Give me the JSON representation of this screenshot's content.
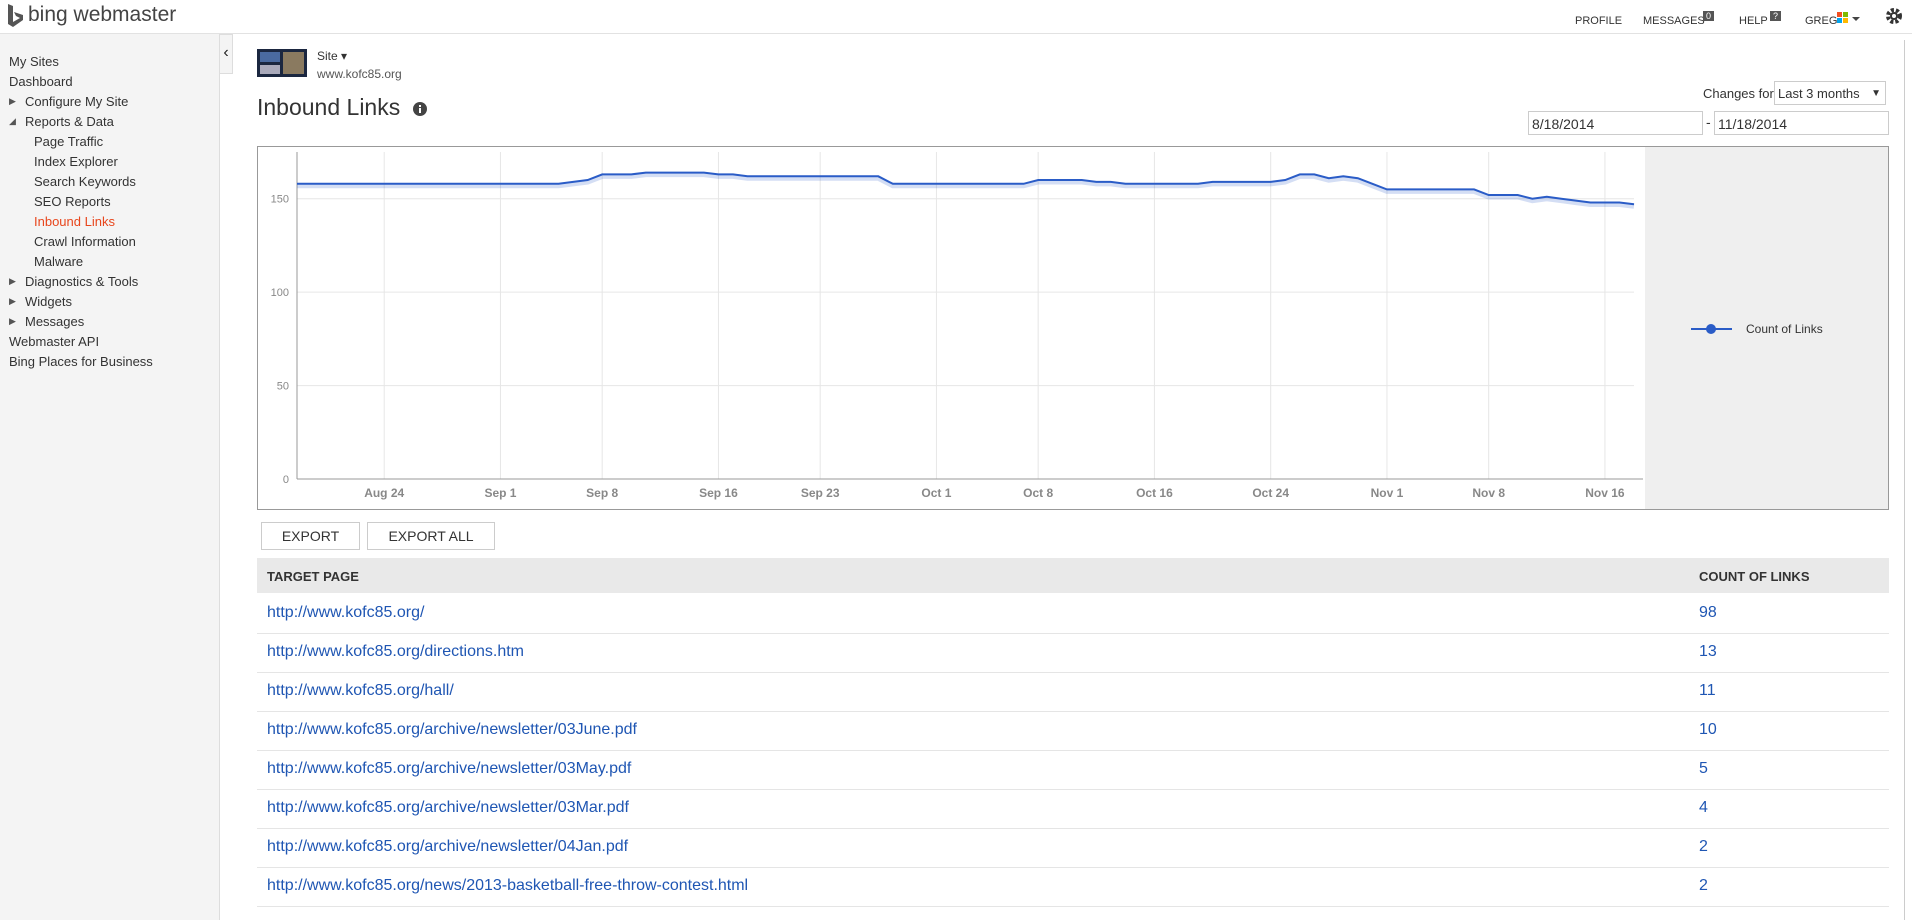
{
  "header": {
    "brand": "bing webmaster",
    "nav": [
      "PROFILE",
      "MESSAGES",
      "HELP",
      "GREG"
    ],
    "messages_badge": "0",
    "help_badge": "?"
  },
  "sidebar": {
    "items": [
      {
        "label": "My Sites"
      },
      {
        "label": "Dashboard"
      },
      {
        "label": "Configure My Site",
        "expandable": true
      },
      {
        "label": "Reports & Data",
        "children": [
          {
            "label": "Page Traffic"
          },
          {
            "label": "Index Explorer"
          },
          {
            "label": "Search Keywords"
          },
          {
            "label": "SEO Reports"
          },
          {
            "label": "Inbound Links",
            "active": true
          },
          {
            "label": "Crawl Information"
          },
          {
            "label": "Malware"
          }
        ]
      },
      {
        "label": "Diagnostics & Tools",
        "expandable": true
      },
      {
        "label": "Widgets",
        "expandable": true
      },
      {
        "label": "Messages",
        "expandable": true
      },
      {
        "label": "Webmaster API"
      },
      {
        "label": "Bing Places for Business"
      }
    ]
  },
  "site": {
    "menu": "Site",
    "url": "www.kofc85.org"
  },
  "page": {
    "title": "Inbound Links",
    "changes_for": "Changes for",
    "range": "Last 3 months",
    "date_from": "8/18/2014",
    "date_sep": "-",
    "date_to": "11/18/2014"
  },
  "chart_data": {
    "type": "line",
    "categories": [
      null,
      null,
      null,
      null,
      null,
      null,
      "Aug 24",
      null,
      null,
      null,
      null,
      null,
      null,
      null,
      "Sep 1",
      null,
      null,
      null,
      null,
      null,
      null,
      "Sep 8",
      null,
      null,
      null,
      null,
      null,
      null,
      null,
      "Sep 16",
      null,
      null,
      null,
      null,
      null,
      null,
      "Sep 23",
      null,
      null,
      null,
      null,
      null,
      null,
      null,
      "Oct 1",
      null,
      null,
      null,
      null,
      null,
      null,
      "Oct 8",
      null,
      null,
      null,
      null,
      null,
      null,
      null,
      "Oct 16",
      null,
      null,
      null,
      null,
      null,
      null,
      null,
      "Oct 24",
      null,
      null,
      null,
      null,
      null,
      null,
      null,
      "Nov 1",
      null,
      null,
      null,
      null,
      null,
      null,
      "Nov 8",
      null,
      null,
      null,
      null,
      null,
      null,
      null,
      "Nov 16",
      null,
      null
    ],
    "series": [
      {
        "name": "Count of Links",
        "color": "#2a5cc7",
        "values": [
          158,
          158,
          158,
          158,
          158,
          158,
          158,
          158,
          158,
          158,
          158,
          158,
          158,
          158,
          158,
          158,
          158,
          158,
          158,
          159,
          160,
          163,
          163,
          163,
          164,
          164,
          164,
          164,
          164,
          163,
          163,
          162,
          162,
          162,
          162,
          162,
          162,
          162,
          162,
          162,
          162,
          158,
          158,
          158,
          158,
          158,
          158,
          158,
          158,
          158,
          158,
          160,
          160,
          160,
          160,
          159,
          159,
          158,
          158,
          158,
          158,
          158,
          158,
          159,
          159,
          159,
          159,
          159,
          160,
          163,
          163,
          161,
          162,
          161,
          158,
          155,
          155,
          155,
          155,
          155,
          155,
          155,
          152,
          152,
          152,
          150,
          151,
          150,
          149,
          148,
          148,
          148,
          147
        ]
      }
    ],
    "ylim": [
      0,
      175
    ],
    "yticks": [
      0,
      50,
      100,
      150
    ],
    "grid": true,
    "legend": "right"
  },
  "buttons": [
    "EXPORT",
    "EXPORT ALL"
  ],
  "table": {
    "columns": [
      "TARGET PAGE",
      "COUNT OF LINKS"
    ],
    "rows": [
      [
        "http://www.kofc85.org/",
        98
      ],
      [
        "http://www.kofc85.org/directions.htm",
        13
      ],
      [
        "http://www.kofc85.org/hall/",
        11
      ],
      [
        "http://www.kofc85.org/archive/newsletter/03June.pdf",
        10
      ],
      [
        "http://www.kofc85.org/archive/newsletter/03May.pdf",
        5
      ],
      [
        "http://www.kofc85.org/archive/newsletter/03Mar.pdf",
        4
      ],
      [
        "http://www.kofc85.org/archive/newsletter/04Jan.pdf",
        2
      ],
      [
        "http://www.kofc85.org/news/2013-basketball-free-throw-contest.html",
        2
      ]
    ]
  }
}
